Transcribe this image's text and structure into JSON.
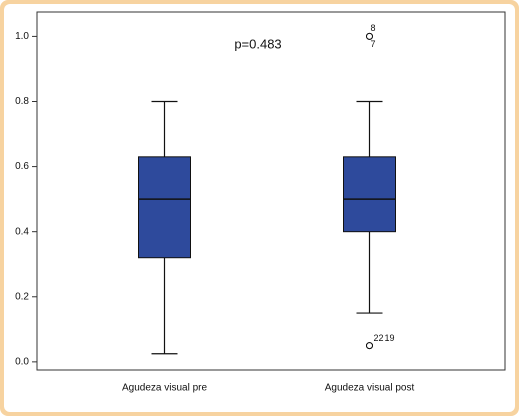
{
  "chart_data": {
    "type": "boxplot",
    "annotation": "p=0.483",
    "categories": [
      "Agudeza visual pre",
      "Agudeza visual post"
    ],
    "color": "#2e4a9c",
    "boxes": [
      {
        "whisker_low": 0.025,
        "q1": 0.32,
        "median": 0.5,
        "q3": 0.63,
        "whisker_high": 0.8,
        "outliers": []
      },
      {
        "whisker_low": 0.15,
        "q1": 0.4,
        "median": 0.5,
        "q3": 0.63,
        "whisker_high": 0.8,
        "outliers": [
          {
            "value": 1.0,
            "label": "8"
          },
          {
            "value": 1.0,
            "label": "7"
          },
          {
            "value": 0.05,
            "label": "22"
          },
          {
            "value": 0.05,
            "label": "19"
          }
        ]
      }
    ],
    "ylim": [
      -0.025,
      1.075
    ],
    "yticks": [
      {
        "value": 0,
        "label": "0.0"
      },
      0.2,
      0.4,
      0.6,
      0.8,
      {
        "value": 1,
        "label": "1.0"
      }
    ]
  }
}
